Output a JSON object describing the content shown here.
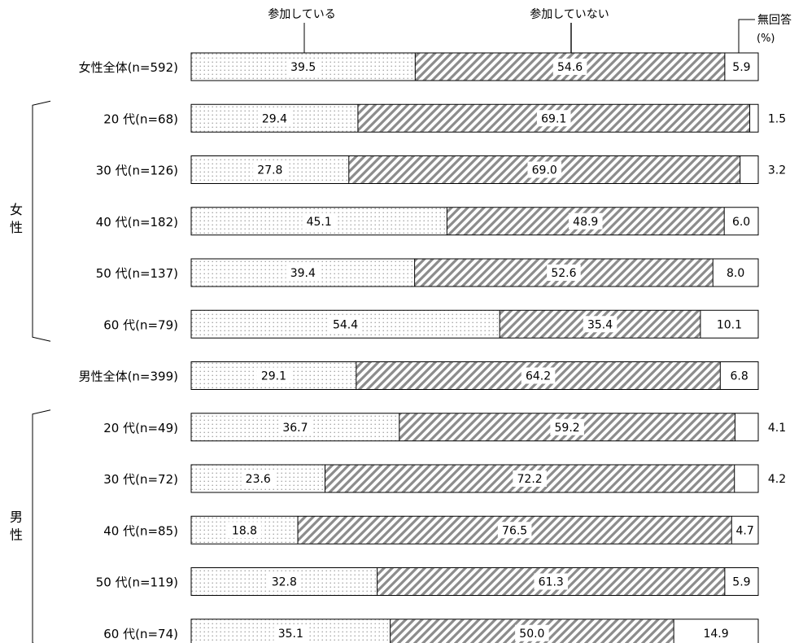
{
  "chart_data": {
    "type": "bar",
    "orientation": "horizontal",
    "stacked": true,
    "unit": "(%)",
    "series": [
      {
        "name": "参加している",
        "fill": "dotted",
        "values": [
          39.5,
          29.4,
          27.8,
          45.1,
          39.4,
          54.4,
          29.1,
          36.7,
          23.6,
          18.8,
          32.8,
          35.1
        ]
      },
      {
        "name": "参加していない",
        "fill": "diagonal-hatch",
        "values": [
          54.6,
          69.1,
          69.0,
          48.9,
          52.6,
          35.4,
          64.2,
          59.2,
          72.2,
          76.5,
          61.3,
          50.0
        ]
      },
      {
        "name": "無回答",
        "fill": "white",
        "values": [
          5.9,
          1.5,
          3.2,
          6.0,
          8.0,
          10.1,
          6.8,
          4.1,
          4.2,
          4.7,
          5.9,
          14.9
        ]
      }
    ],
    "categories": [
      "女性全体(n=592)",
      "20 代(n=68)",
      "30 代(n=126)",
      "40 代(n=182)",
      "50 代(n=137)",
      "60 代(n=79)",
      "男性全体(n=399)",
      "20 代(n=49)",
      "30 代(n=72)",
      "40 代(n=85)",
      "50 代(n=119)",
      "60 代(n=74)"
    ],
    "groups": [
      {
        "label": "女性",
        "first": 1,
        "last": 5
      },
      {
        "label": "男性",
        "first": 7,
        "last": 11
      }
    ],
    "xlim": [
      0,
      100
    ]
  },
  "colors": {
    "bar_stroke": "#000000",
    "hatch": "#8c8c8c",
    "dots": "#9a9a9a",
    "text": "#000000"
  }
}
